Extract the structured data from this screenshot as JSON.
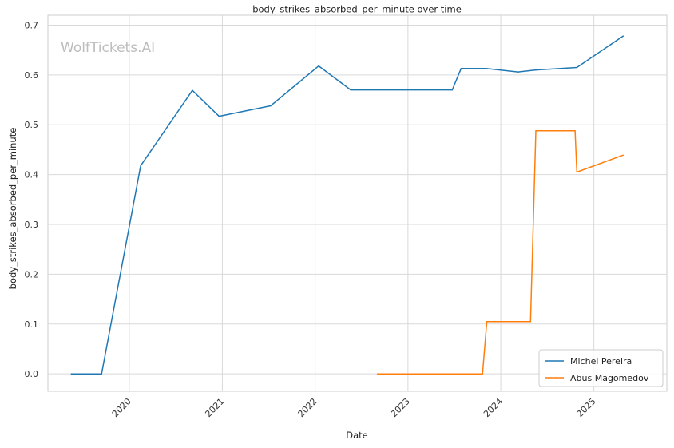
{
  "chart_data": {
    "type": "line",
    "title": "body_strikes_absorbed_per_minute over time",
    "xlabel": "Date",
    "ylabel": "body_strikes_absorbed_per_minute",
    "watermark": "WolfTickets.AI",
    "xlim": [
      "2019-02-15",
      "2025-10-15"
    ],
    "ylim": [
      -0.035,
      0.72
    ],
    "x_ticks": [
      "2020-01-01",
      "2021-01-01",
      "2022-01-01",
      "2023-01-01",
      "2024-01-01",
      "2025-01-01"
    ],
    "x_tick_labels": [
      "2020",
      "2021",
      "2022",
      "2023",
      "2024",
      "2025"
    ],
    "y_ticks": [
      0.0,
      0.1,
      0.2,
      0.3,
      0.4,
      0.5,
      0.6,
      0.7
    ],
    "y_tick_labels": [
      "0.0",
      "0.1",
      "0.2",
      "0.3",
      "0.4",
      "0.5",
      "0.6",
      "0.7"
    ],
    "grid": true,
    "legend": {
      "position": "bottom-right"
    },
    "series": [
      {
        "name": "Michel Pereira",
        "color": "#1f77b4",
        "points": [
          [
            "2019-05-18",
            0.0
          ],
          [
            "2019-09-14",
            0.0
          ],
          [
            "2020-02-15",
            0.418
          ],
          [
            "2020-09-05",
            0.569
          ],
          [
            "2020-12-19",
            0.517
          ],
          [
            "2021-07-10",
            0.538
          ],
          [
            "2022-01-15",
            0.618
          ],
          [
            "2022-05-21",
            0.57
          ],
          [
            "2023-06-24",
            0.57
          ],
          [
            "2023-07-29",
            0.613
          ],
          [
            "2023-11-04",
            0.613
          ],
          [
            "2024-03-09",
            0.606
          ],
          [
            "2024-05-18",
            0.61
          ],
          [
            "2024-10-26",
            0.615
          ],
          [
            "2025-04-26",
            0.678
          ]
        ]
      },
      {
        "name": "Abus Magomedov",
        "color": "#ff7f0e",
        "points": [
          [
            "2022-09-03",
            0.0
          ],
          [
            "2023-10-21",
            0.0
          ],
          [
            "2023-11-07",
            0.105
          ],
          [
            "2024-04-27",
            0.105
          ],
          [
            "2024-05-18",
            0.488
          ],
          [
            "2024-10-19",
            0.488
          ],
          [
            "2024-10-26",
            0.405
          ],
          [
            "2025-04-26",
            0.439
          ]
        ]
      }
    ]
  }
}
